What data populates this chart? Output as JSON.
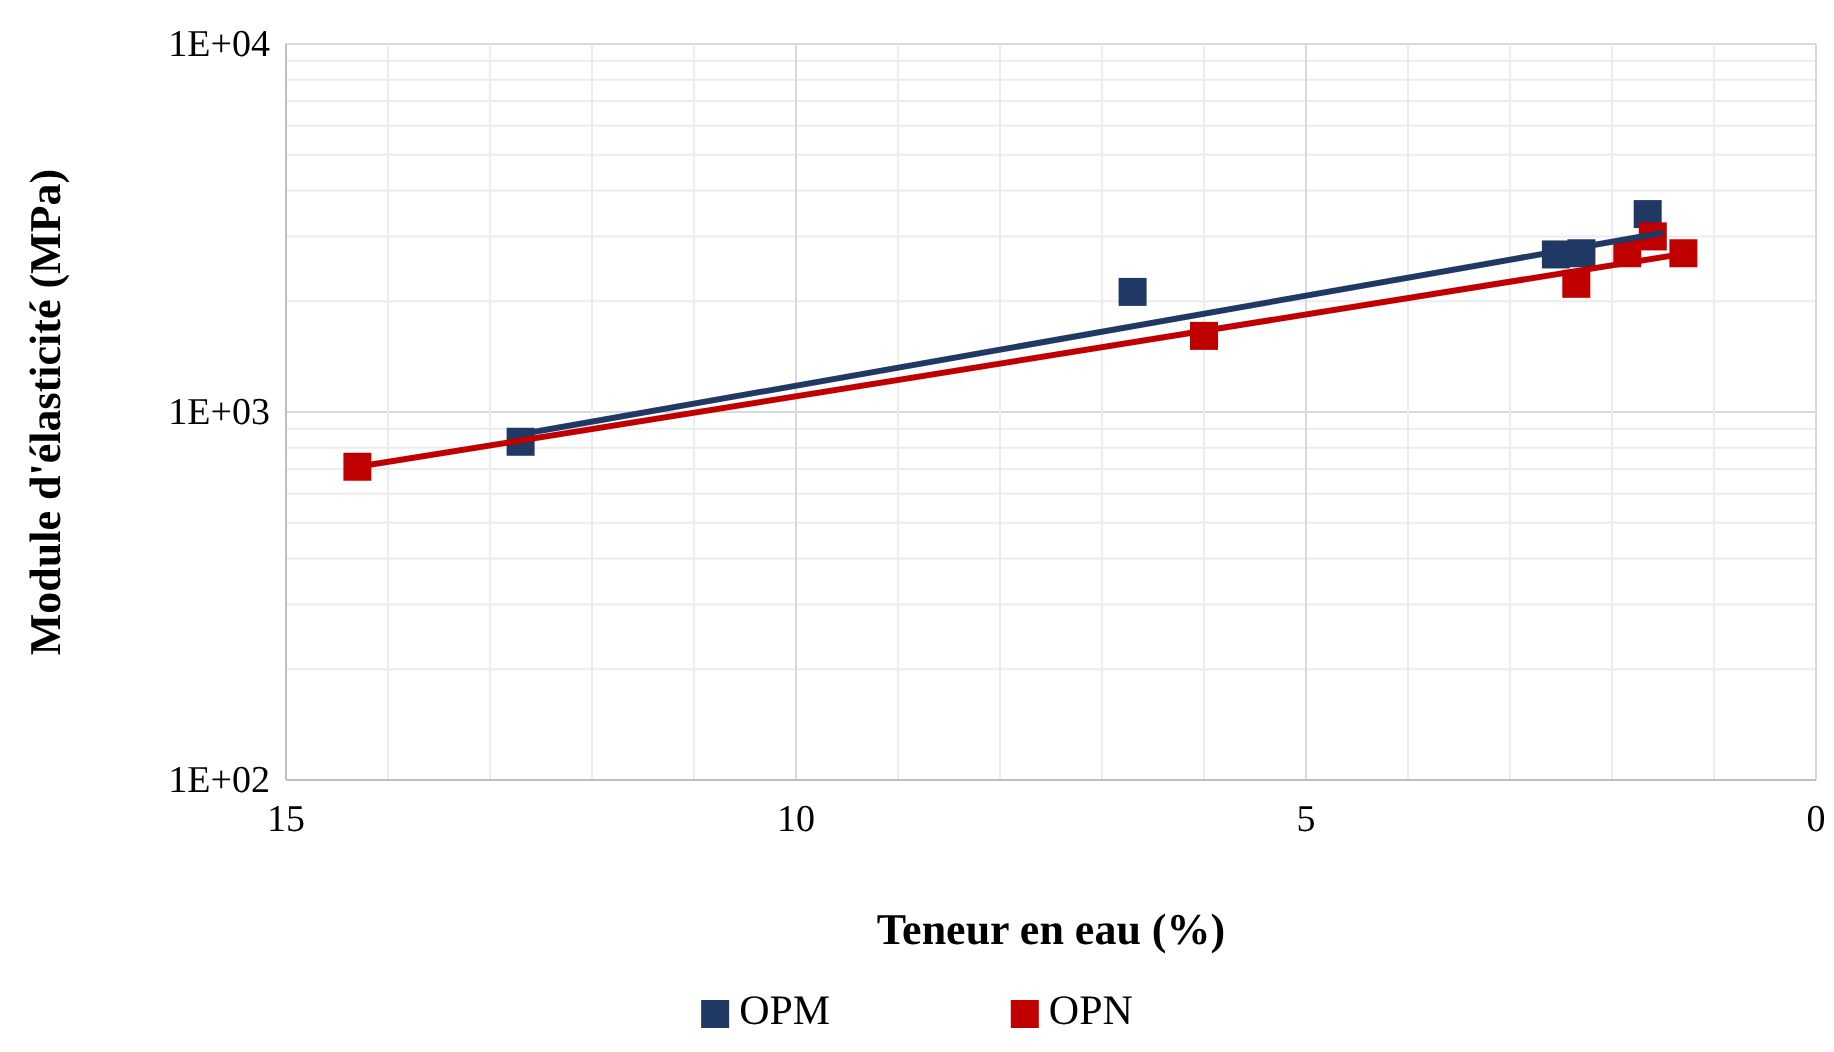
{
  "chart_data": {
    "type": "scatter",
    "xlabel": "Teneur en eau (%)",
    "ylabel": "Module d'élasticité (MPa)",
    "xlim": [
      15,
      0
    ],
    "xticks": [
      15,
      10,
      5,
      0
    ],
    "ylim": [
      100,
      10000
    ],
    "yticks": [
      {
        "value": 100,
        "label": "1E+02"
      },
      {
        "value": 1000,
        "label": "1E+03"
      },
      {
        "value": 10000,
        "label": "1E+04"
      }
    ],
    "log": "y",
    "grid": true,
    "legend": "bottom",
    "marker": "square",
    "series": [
      {
        "name": "OPM",
        "color": "#1f3864",
        "x": [
          12.7,
          6.7,
          2.55,
          2.3,
          1.65
        ],
        "values": [
          830,
          2120,
          2680,
          2700,
          3450
        ]
      },
      {
        "name": "OPN",
        "color": "#c00000",
        "x": [
          14.3,
          6.0,
          2.35,
          1.85,
          1.6,
          1.3
        ],
        "values": [
          710,
          1610,
          2230,
          2700,
          3000,
          2700
        ]
      },
      {
        "type": "line",
        "color": "#1f3864",
        "x": [
          12.7,
          1.5
        ],
        "values": [
          870,
          3070
        ],
        "marker": "none"
      },
      {
        "type": "line",
        "color": "#c00000",
        "x": [
          14.3,
          1.3
        ],
        "values": [
          710,
          2690
        ],
        "marker": "none"
      }
    ]
  }
}
